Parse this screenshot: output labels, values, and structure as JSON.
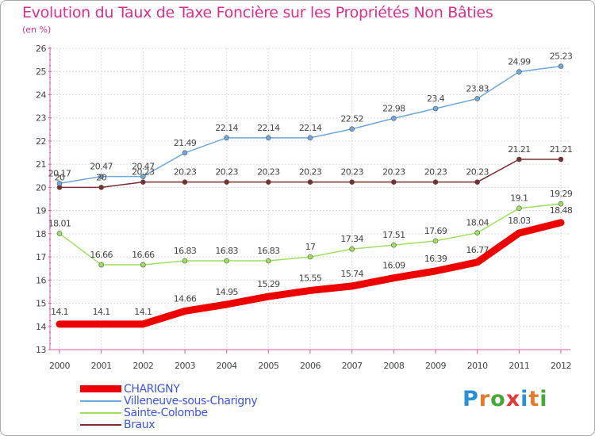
{
  "title": "Evolution du Taux de Taxe Foncière sur les Propriétés Non Bâties",
  "unit": "(en %)",
  "logo": {
    "letters": [
      "P",
      "r",
      "o",
      "x",
      "i",
      "t",
      "i"
    ],
    "colors": [
      "#2b8fd6",
      "#e27b2b",
      "#4aa63a",
      "#e03a3a",
      "#2b8fd6",
      "#e27b2b",
      "#4aa63a"
    ]
  },
  "chart_data": {
    "type": "line",
    "title": "Evolution du Taux de Taxe Foncière sur les Propriétés Non Bâties",
    "ylabel": "(en %)",
    "xlabel": "",
    "x": [
      "2000",
      "2001",
      "2002",
      "2003",
      "2004",
      "2005",
      "2006",
      "2007",
      "2008",
      "2009",
      "2010",
      "2011",
      "2012"
    ],
    "ylim": [
      13,
      26
    ],
    "yticks": [
      "13",
      "14",
      "15",
      "16",
      "17",
      "18",
      "19",
      "20",
      "21",
      "22",
      "23",
      "24",
      "25",
      "26"
    ],
    "grid": true,
    "legend_position": "bottom-left",
    "series": [
      {
        "name": "CHARIGNY",
        "color": "#ee0000",
        "values": [
          14.1,
          14.1,
          14.1,
          14.66,
          14.95,
          15.29,
          15.55,
          15.74,
          16.09,
          16.39,
          16.77,
          18.03,
          18.48
        ],
        "labels": [
          "14.1",
          "14.1",
          "14.1",
          "14.66",
          "14.95",
          "15.29",
          "15.55",
          "15.74",
          "16.09",
          "16.39",
          "16.77",
          "18.03",
          "18.48"
        ]
      },
      {
        "name": "Villeneuve-sous-Charigny",
        "color": "#6fa8dc",
        "values": [
          20.17,
          20.47,
          20.47,
          21.49,
          22.14,
          22.14,
          22.14,
          22.52,
          22.98,
          23.4,
          23.83,
          24.99,
          25.23
        ],
        "labels": [
          "20.17",
          "20.47",
          "20.47",
          "21.49",
          "22.14",
          "22.14",
          "22.14",
          "22.52",
          "22.98",
          "23.4",
          "23.83",
          "24.99",
          "25.23"
        ]
      },
      {
        "name": "Sainte-Colombe",
        "color": "#9fe060",
        "values": [
          18.01,
          16.66,
          16.66,
          16.83,
          16.83,
          16.83,
          17,
          17.34,
          17.51,
          17.69,
          18.04,
          19.1,
          19.29
        ],
        "labels": [
          "18.01",
          "16.66",
          "16.66",
          "16.83",
          "16.83",
          "16.83",
          "17",
          "17.34",
          "17.51",
          "17.69",
          "18.04",
          "19.1",
          "19.29"
        ]
      },
      {
        "name": "Braux",
        "color": "#7a2e2e",
        "values": [
          20,
          20,
          20.23,
          20.23,
          20.23,
          20.23,
          20.23,
          20.23,
          20.23,
          20.23,
          20.23,
          21.21,
          21.21
        ],
        "labels": [
          "20",
          "20",
          "20.23",
          "20.23",
          "20.23",
          "20.23",
          "20.23",
          "20.23",
          "20.23",
          "20.23",
          "20.23",
          "21.21",
          "21.21"
        ]
      }
    ]
  }
}
